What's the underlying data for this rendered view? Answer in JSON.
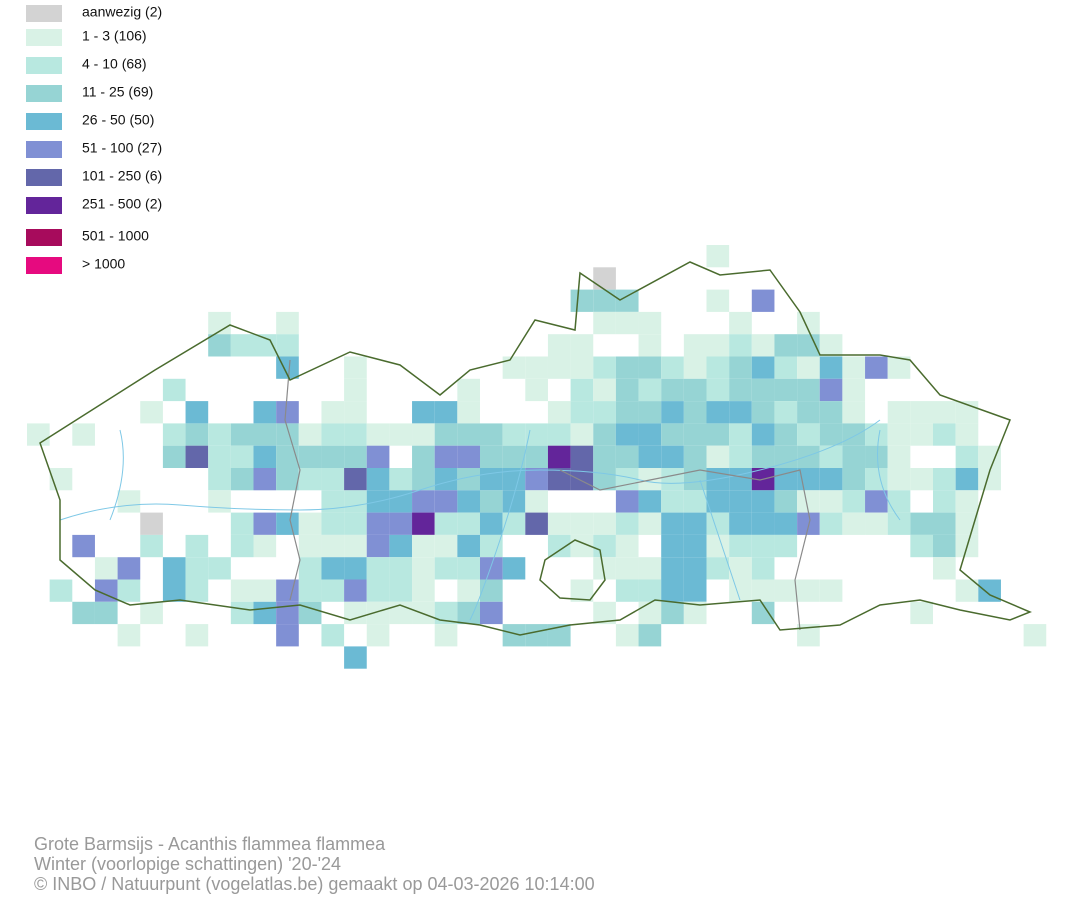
{
  "legend": [
    {
      "label": "aanwezig (2)",
      "color": "#d3d3d3"
    },
    {
      "label": "1 - 3 (106)",
      "color": "#d9f2e6"
    },
    {
      "label": "4 - 10 (68)",
      "color": "#b8e8e0"
    },
    {
      "label": "11 - 25 (69)",
      "color": "#96d4d4"
    },
    {
      "label": "26 - 50 (50)",
      "color": "#6bbad4"
    },
    {
      "label": "51 - 100 (27)",
      "color": "#8090d4"
    },
    {
      "label": "101 - 250 (6)",
      "color": "#6367aa"
    },
    {
      "label": "251 - 500 (2)",
      "color": "#63259a"
    },
    {
      "label": "501 - 1000",
      "color": "#a70b5c"
    },
    {
      "label": "> 1000",
      "color": "#e60a7f"
    }
  ],
  "footer": {
    "title": "Grote Barmsijs - Acanthis flammea flammea",
    "subtitle": "Winter (voorlopige schattingen) '20-'24",
    "credit": "© INBO / Natuurpunt (vogelatlas.be) gemaakt op 04-03-2026 10:14:00"
  }
}
